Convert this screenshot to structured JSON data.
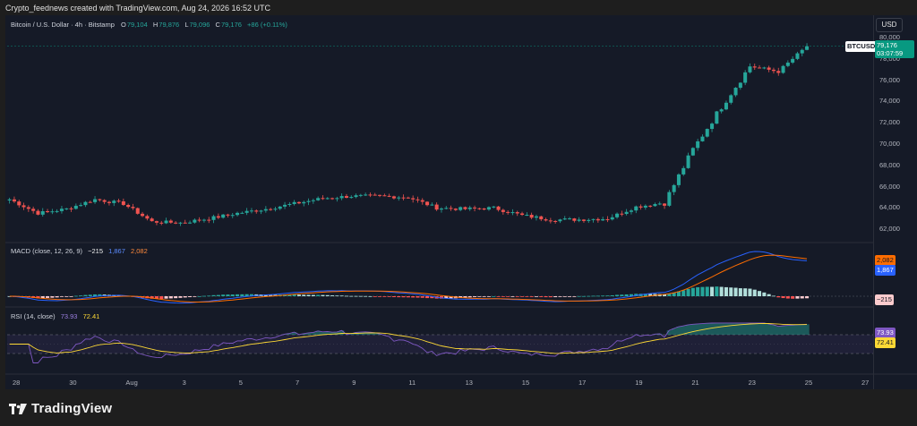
{
  "header": {
    "attribution": "Crypto_feednews created with TradingView.com, Aug 24, 2026 16:52 UTC",
    "currency": "USD"
  },
  "price_legend": {
    "symbol": "Bitcoin / U.S. Dollar · 4h · Bitstamp",
    "open_label": "O",
    "open": "79,104",
    "high_label": "H",
    "high": "79,876",
    "low_label": "L",
    "low": "79,096",
    "close_label": "C",
    "close": "79,176",
    "change": "+86 (+0.11%)"
  },
  "price_badge": {
    "symbol": "BTCUSD",
    "price": "79,176",
    "countdown": "03:07:59"
  },
  "macd_legend": {
    "title": "MACD (close, 12, 26, 9)",
    "hist": "−215",
    "macd": "1,867",
    "signal": "2,082"
  },
  "rsi_legend": {
    "title": "RSI (14, close)",
    "rsi": "73.93",
    "ma": "72.41"
  },
  "footer": {
    "brand": "TradingView"
  },
  "colors": {
    "up": "#26a69a",
    "down": "#ef5350",
    "macd": "#2962ff",
    "signal": "#ff6d00",
    "rsi": "#7e57c2",
    "rsi_ma": "#fdd835",
    "badge_green": "#089981"
  },
  "chart_data": [
    {
      "type": "candlestick",
      "timeframe": "4h",
      "y_axis_ticks": [
        "80,000",
        "78,000",
        "76,000",
        "74,000",
        "72,000",
        "70,000",
        "68,000",
        "66,000",
        "64,000",
        "62,000"
      ],
      "ylim": [
        61000,
        81000
      ],
      "x_axis_ticks": [
        "28",
        "30",
        "Aug",
        "3",
        "5",
        "7",
        "9",
        "11",
        "13",
        "15",
        "17",
        "19",
        "21",
        "23",
        "25",
        "27"
      ],
      "approx_close_path": [
        {
          "date": "Jul 27",
          "close": 64800
        },
        {
          "date": "Jul 28",
          "close": 63500
        },
        {
          "date": "Jul 29",
          "close": 63900
        },
        {
          "date": "Jul 30",
          "close": 64800
        },
        {
          "date": "Jul 31",
          "close": 64400
        },
        {
          "date": "Aug 1",
          "close": 62700
        },
        {
          "date": "Aug 2",
          "close": 62600
        },
        {
          "date": "Aug 3",
          "close": 63000
        },
        {
          "date": "Aug 4",
          "close": 63500
        },
        {
          "date": "Aug 5",
          "close": 63900
        },
        {
          "date": "Aug 6",
          "close": 64400
        },
        {
          "date": "Aug 7",
          "close": 64900
        },
        {
          "date": "Aug 8",
          "close": 65100
        },
        {
          "date": "Aug 9",
          "close": 65100
        },
        {
          "date": "Aug 10",
          "close": 65000
        },
        {
          "date": "Aug 11",
          "close": 64000
        },
        {
          "date": "Aug 12",
          "close": 63900
        },
        {
          "date": "Aug 13",
          "close": 64000
        },
        {
          "date": "Aug 14",
          "close": 63300
        },
        {
          "date": "Aug 15",
          "close": 62900
        },
        {
          "date": "Aug 16",
          "close": 62900
        },
        {
          "date": "Aug 17",
          "close": 63000
        },
        {
          "date": "Aug 18",
          "close": 64100
        },
        {
          "date": "Aug 19",
          "close": 64500
        },
        {
          "date": "Aug 20",
          "close": 69500
        },
        {
          "date": "Aug 21",
          "close": 73500
        },
        {
          "date": "Aug 22",
          "close": 77300
        },
        {
          "date": "Aug 23",
          "close": 76800
        },
        {
          "date": "Aug 24",
          "close": 79176
        }
      ],
      "last_close": 79176
    },
    {
      "type": "line",
      "title": "MACD (close, 12, 26, 9)",
      "series": [
        {
          "name": "MACD",
          "color": "#2962ff",
          "last": 1867
        },
        {
          "name": "Signal",
          "color": "#ff6d00",
          "last": 2082
        },
        {
          "name": "Histogram",
          "last": -215
        }
      ]
    },
    {
      "type": "line",
      "title": "RSI (14, close)",
      "series": [
        {
          "name": "RSI",
          "color": "#7e57c2",
          "last": 73.93
        },
        {
          "name": "RSI-based MA",
          "color": "#fdd835",
          "last": 72.41
        }
      ],
      "band": [
        30,
        70
      ]
    }
  ]
}
